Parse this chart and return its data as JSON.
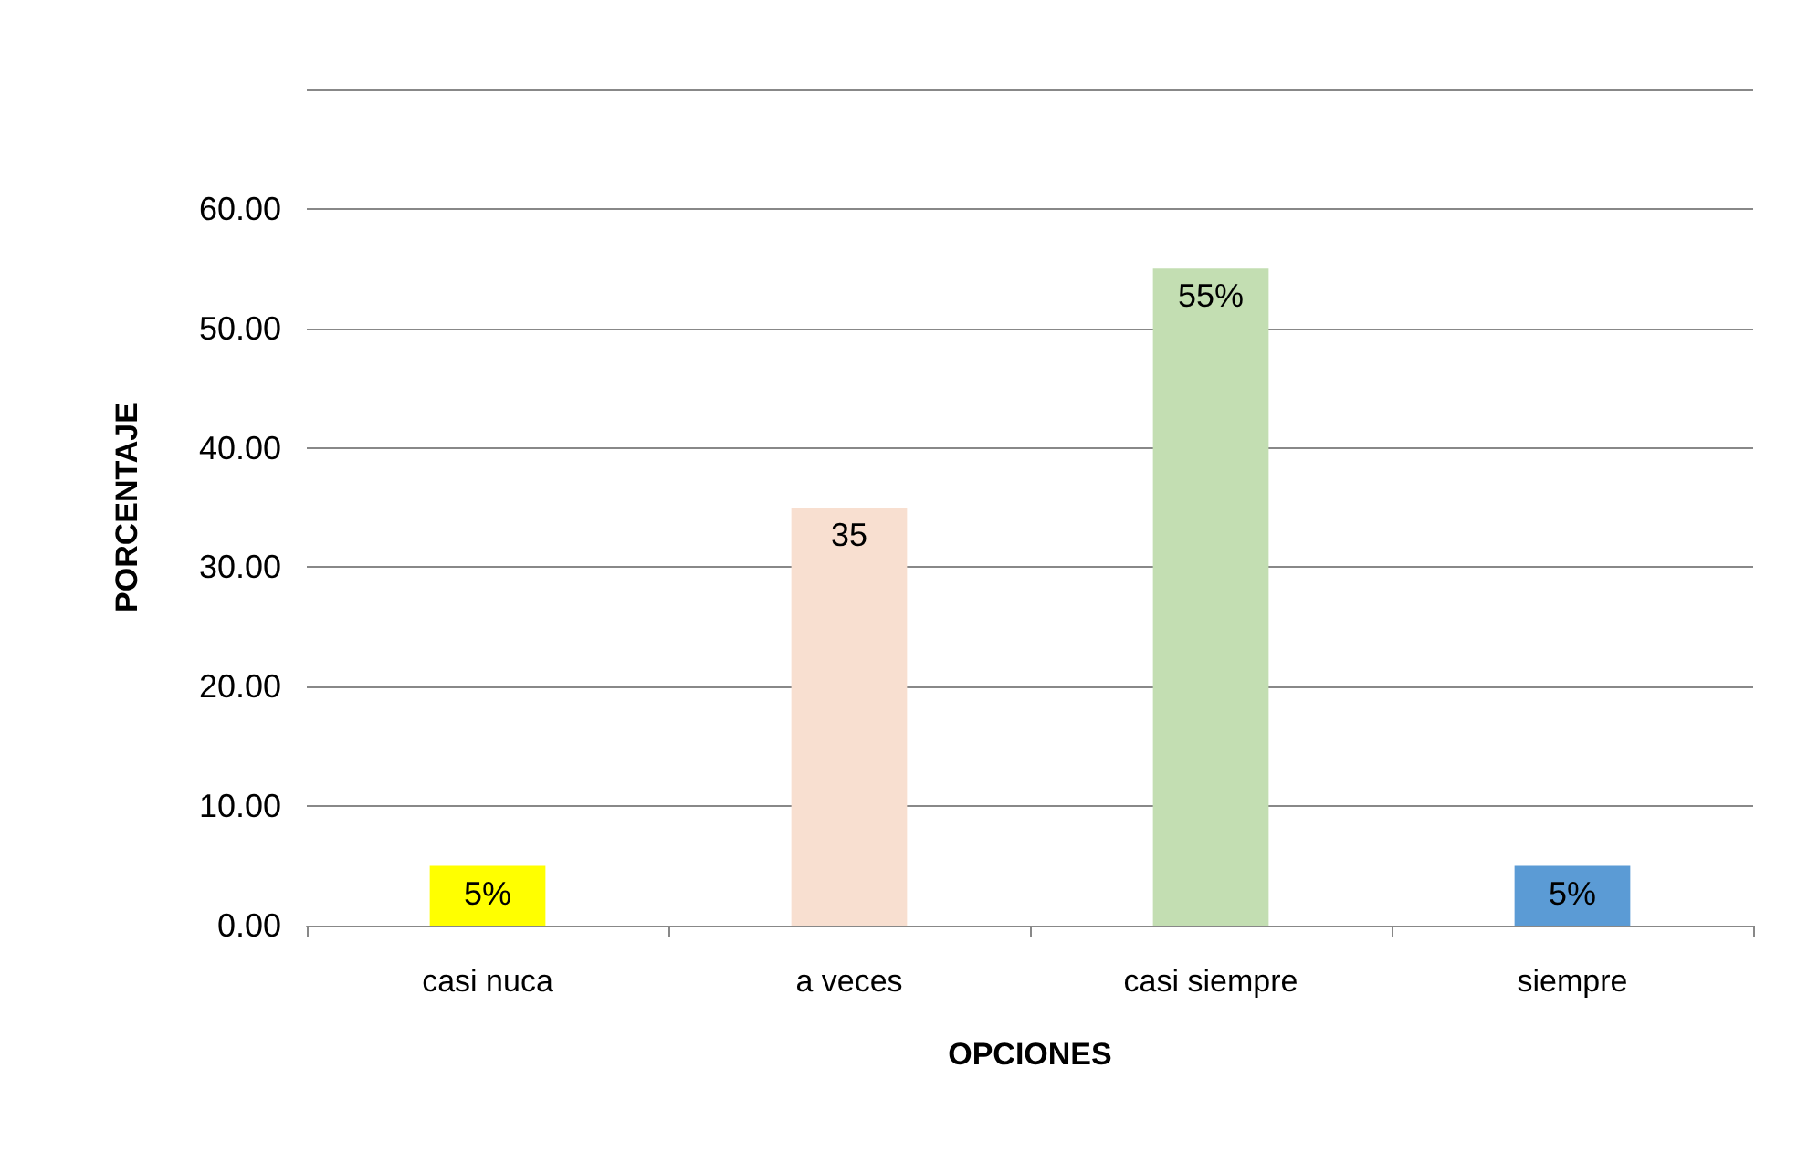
{
  "chart_data": {
    "type": "bar",
    "xlabel": "OPCIONES",
    "ylabel": "PORCENTAJE",
    "categories": [
      "casi nuca",
      "a veces",
      "casi siempre",
      "siempre"
    ],
    "values": [
      5,
      35,
      55,
      5
    ],
    "colors": [
      "#ffff00",
      "#f8dfd0",
      "#c3deb2",
      "#5b9bd5"
    ],
    "value_labels": [
      "5%",
      "35",
      "55%",
      "5%"
    ],
    "ylim": [
      0,
      70
    ],
    "yticks": [
      {
        "value": 0,
        "label": "0.00"
      },
      {
        "value": 10,
        "label": "10.00"
      },
      {
        "value": 20,
        "label": "20.00"
      },
      {
        "value": 30,
        "label": "30.00"
      },
      {
        "value": 40,
        "label": "40.00"
      },
      {
        "value": 50,
        "label": "50.00"
      },
      {
        "value": 60,
        "label": "60.00"
      },
      {
        "value": 70,
        "label": null
      }
    ],
    "grid": "y"
  }
}
